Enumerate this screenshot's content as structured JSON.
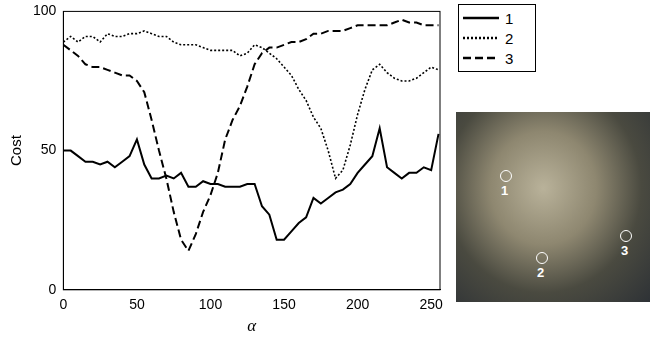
{
  "chart_data": {
    "type": "line",
    "x_label": "α",
    "y_label": "Cost",
    "x": [
      0,
      5,
      10,
      15,
      20,
      25,
      30,
      35,
      40,
      45,
      50,
      55,
      60,
      65,
      70,
      75,
      80,
      85,
      90,
      95,
      100,
      105,
      110,
      115,
      120,
      125,
      130,
      135,
      140,
      145,
      150,
      155,
      160,
      165,
      170,
      175,
      180,
      185,
      190,
      195,
      200,
      205,
      210,
      215,
      220,
      225,
      230,
      235,
      240,
      245,
      250,
      255
    ],
    "series": [
      {
        "name": "1",
        "color": "#000000",
        "line_style": "solid",
        "values": [
          50,
          50,
          48,
          46,
          46,
          45,
          46,
          44,
          46,
          48,
          54,
          45,
          40,
          40,
          41,
          40,
          42,
          37,
          37,
          39,
          38,
          38,
          37,
          37,
          37,
          38,
          38,
          30,
          27,
          18,
          18,
          21,
          24,
          26,
          33,
          31,
          33,
          35,
          36,
          38,
          42,
          45,
          48,
          58,
          44,
          42,
          40,
          42,
          42,
          44,
          43,
          56
        ]
      },
      {
        "name": "2",
        "color": "#000000",
        "line_style": "dotted",
        "values": [
          89,
          91,
          89,
          91,
          91,
          89,
          92,
          91,
          91,
          92,
          92,
          93,
          92,
          91,
          91,
          89,
          88,
          88,
          88,
          87,
          86,
          86,
          86,
          86,
          84,
          85,
          88,
          87,
          85,
          83,
          80,
          77,
          72,
          68,
          62,
          58,
          50,
          40,
          43,
          52,
          63,
          72,
          79,
          81,
          78,
          76,
          75,
          75,
          76,
          78,
          80,
          79
        ]
      },
      {
        "name": "3",
        "color": "#000000",
        "line_style": "dashed",
        "values": [
          88,
          86,
          84,
          81,
          80,
          80,
          79,
          78,
          77,
          77,
          75,
          71,
          61,
          50,
          40,
          28,
          18,
          14,
          20,
          28,
          34,
          42,
          54,
          61,
          66,
          73,
          81,
          85,
          87,
          87,
          88,
          89,
          89,
          90,
          92,
          92,
          93,
          93,
          93,
          94,
          95,
          95,
          95,
          95,
          95,
          96,
          97,
          96,
          96,
          95,
          95,
          95
        ]
      }
    ],
    "xlim": [
      0,
      256
    ],
    "xticks": [
      0,
      50,
      100,
      150,
      200,
      250
    ],
    "ylim": [
      0,
      100
    ],
    "yticks": [
      0,
      50,
      100
    ],
    "grid": false,
    "legend": "right"
  }
}
